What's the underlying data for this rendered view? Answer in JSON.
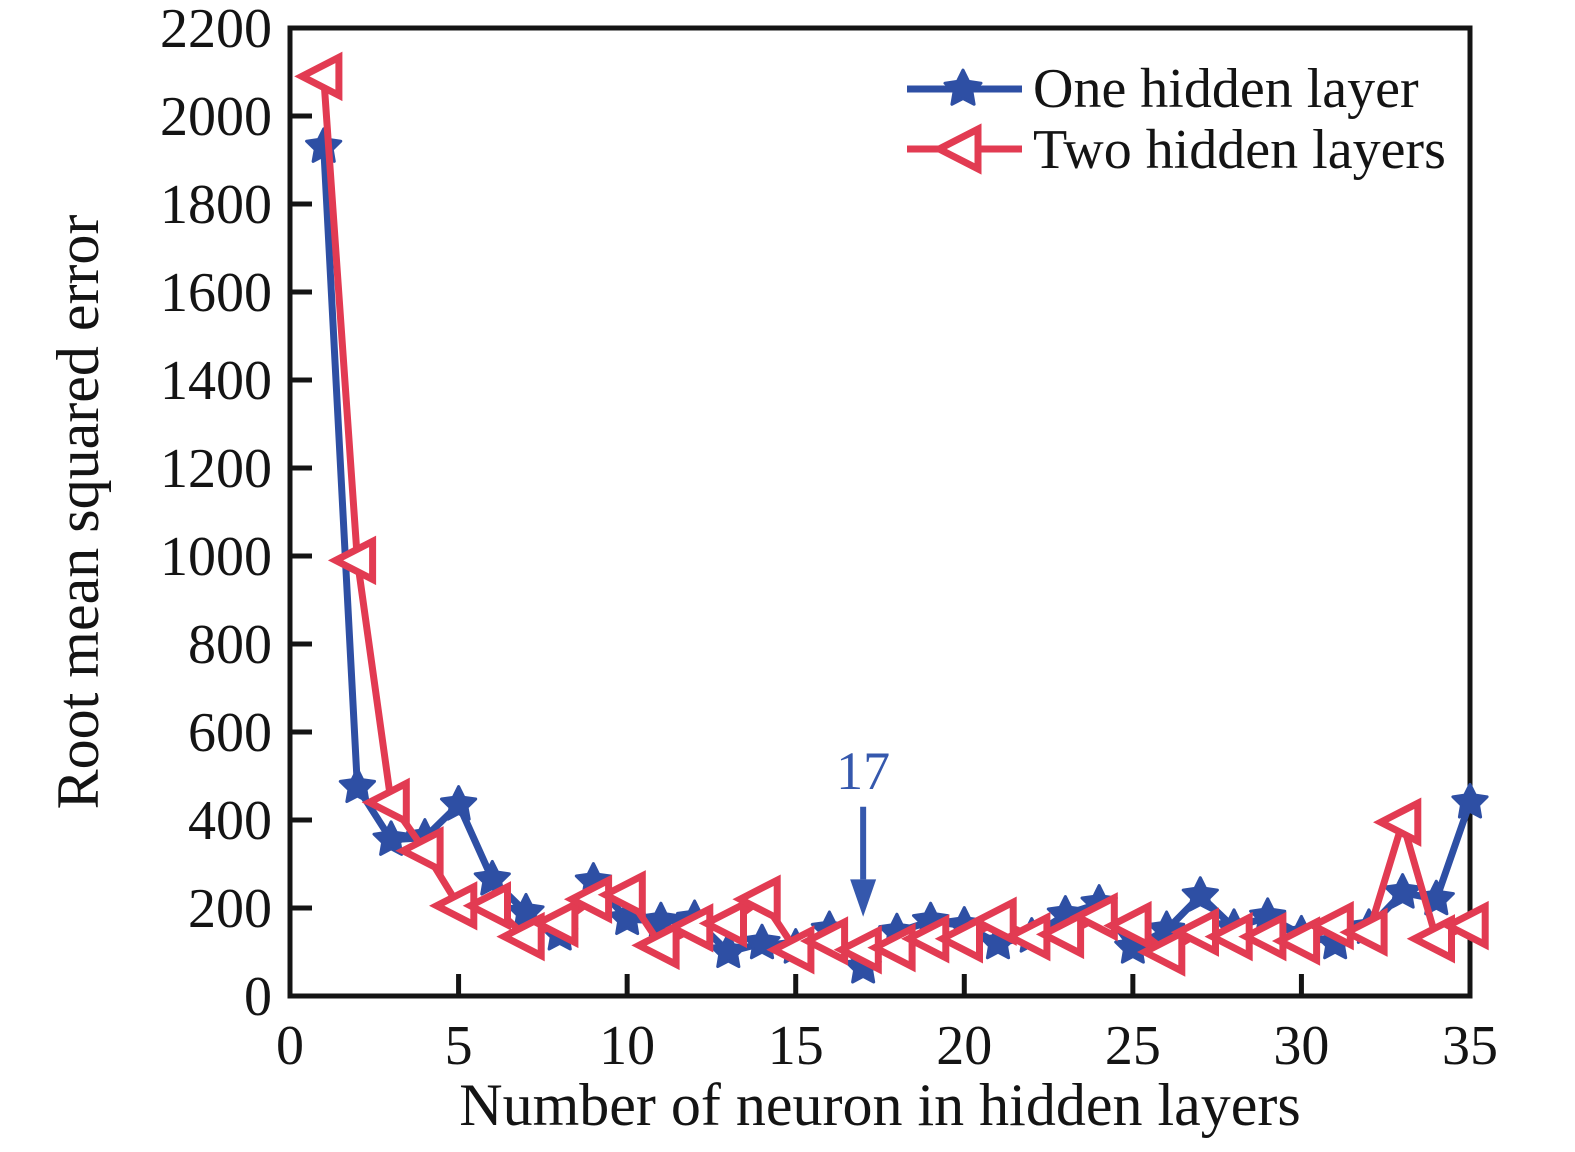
{
  "figure": {
    "background": "#ffffff",
    "axis_color": "#141414"
  },
  "chart_data": {
    "type": "line",
    "title": "",
    "xlabel": "Number of neuron in hidden layers",
    "ylabel": "Root mean squared error",
    "xlim": [
      0,
      35
    ],
    "ylim": [
      0,
      2200
    ],
    "xticks": [
      0,
      5,
      10,
      15,
      20,
      25,
      30,
      35
    ],
    "yticks": [
      0,
      200,
      400,
      600,
      800,
      1000,
      1200,
      1400,
      1600,
      1800,
      2000,
      2200
    ],
    "grid": false,
    "legend_position": "top-right-inside",
    "x": [
      1,
      2,
      3,
      4,
      5,
      6,
      7,
      8,
      9,
      10,
      11,
      12,
      13,
      14,
      15,
      16,
      17,
      18,
      19,
      20,
      21,
      22,
      23,
      24,
      25,
      26,
      27,
      28,
      29,
      30,
      31,
      32,
      33,
      34,
      35
    ],
    "series": [
      {
        "name": "One hidden layer",
        "color": "#2e4fa4",
        "marker": "star",
        "values": [
          1930,
          475,
          355,
          360,
          435,
          265,
          190,
          140,
          260,
          175,
          170,
          175,
          100,
          120,
          110,
          150,
          65,
          145,
          170,
          160,
          120,
          135,
          185,
          210,
          110,
          150,
          228,
          155,
          180,
          140,
          120,
          155,
          235,
          220,
          440
        ]
      },
      {
        "name": "Two hidden layers",
        "color": "#e23b52",
        "marker": "triangle-left",
        "marker_fill": "#ffffff",
        "values": [
          2090,
          990,
          440,
          330,
          205,
          205,
          135,
          165,
          220,
          230,
          115,
          155,
          165,
          220,
          105,
          125,
          105,
          110,
          130,
          130,
          170,
          135,
          140,
          180,
          160,
          100,
          145,
          135,
          135,
          125,
          160,
          145,
          395,
          130,
          160
        ]
      }
    ],
    "annotation": {
      "text": "17",
      "x": 17,
      "text_value": 470,
      "arrow_from_value": 430,
      "arrow_neck_value": 265,
      "arrow_tip_value": 180,
      "color": "#3558ad"
    }
  }
}
